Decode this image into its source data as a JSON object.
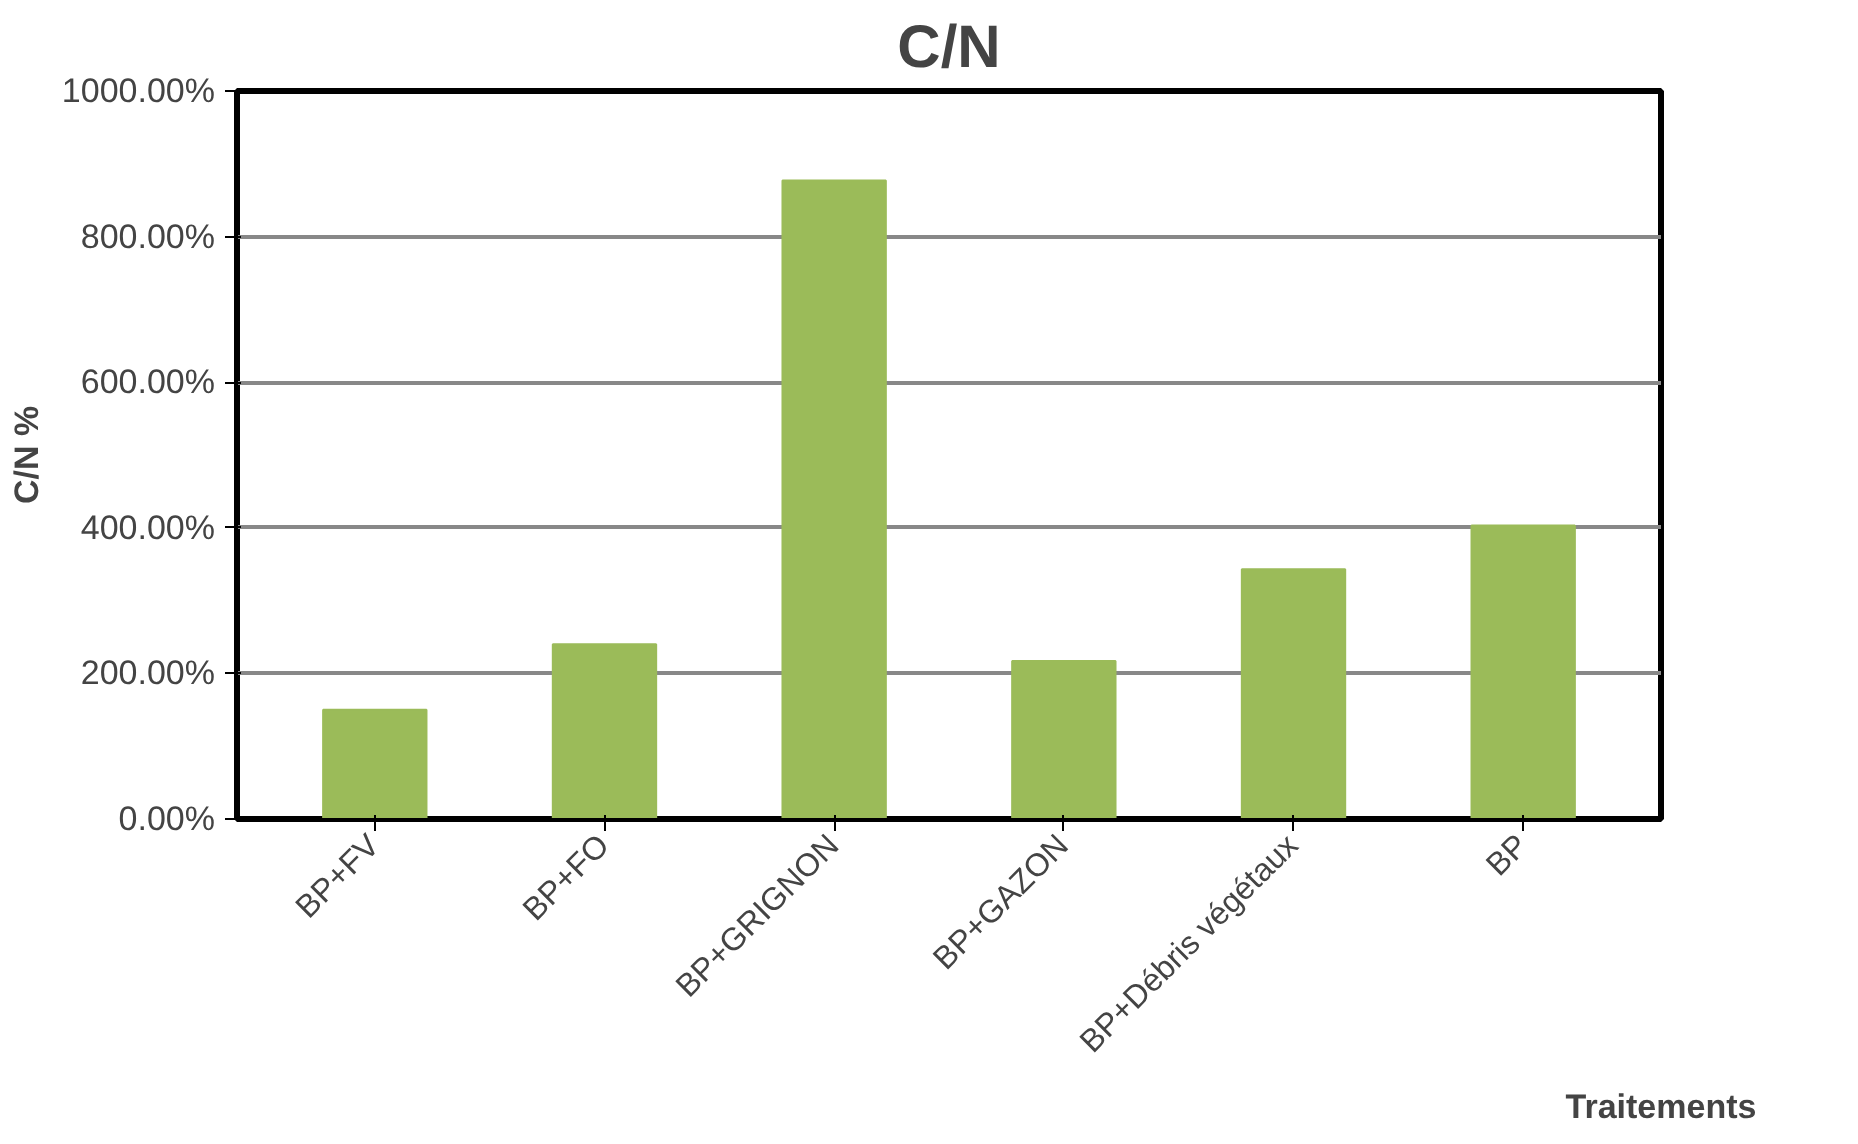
{
  "chart_data": {
    "type": "bar",
    "title": "C/N",
    "ylabel": "C/N %",
    "xlabel": "Traitements",
    "categories": [
      "BP+FV",
      "BP+FO",
      "BP+GRIGNON",
      "BP+GAZON",
      "BP+Débris végétaux",
      "BP"
    ],
    "values": [
      150,
      240,
      877,
      217,
      343,
      403
    ],
    "color": "#9bbb59",
    "ylim": [
      0,
      1000
    ],
    "yticks": [
      {
        "value": 0,
        "label": "0.00%"
      },
      {
        "value": 200,
        "label": "200.00%"
      },
      {
        "value": 400,
        "label": "400.00%"
      },
      {
        "value": 600,
        "label": "600.00%"
      },
      {
        "value": 800,
        "label": "800.00%"
      },
      {
        "value": 1000,
        "label": "1000.00%"
      }
    ],
    "grid": "y"
  }
}
